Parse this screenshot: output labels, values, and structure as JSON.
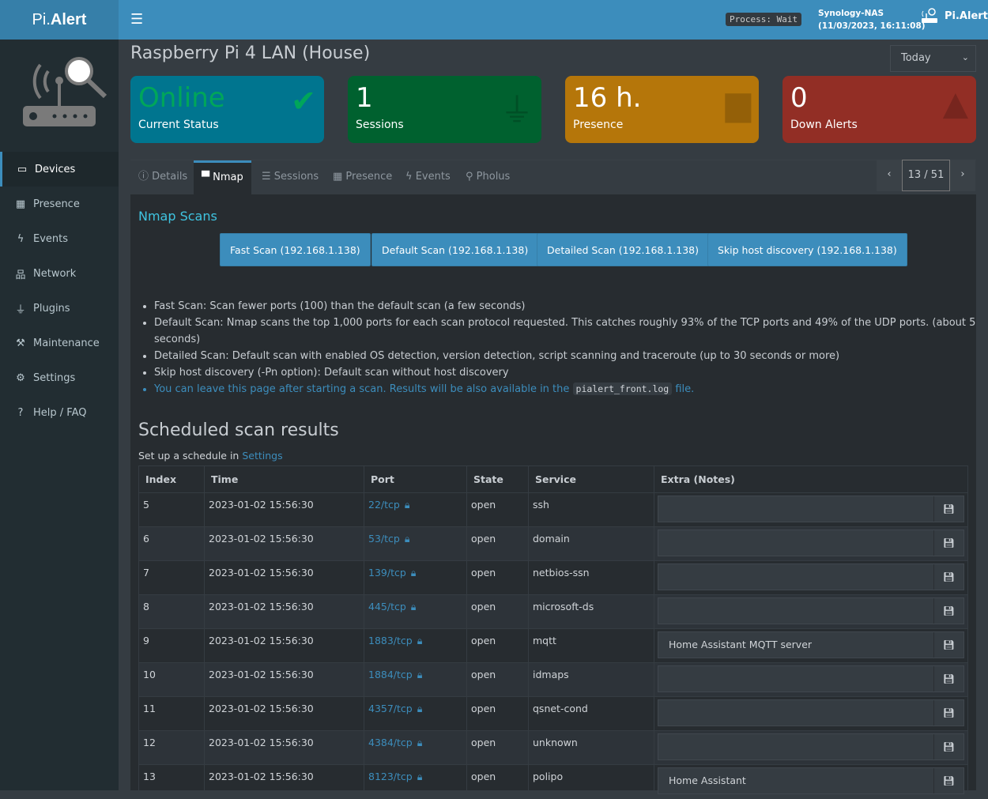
{
  "app": {
    "logo_a": "Pi.",
    "logo_b": "Alert",
    "brand": "Pi.Alert"
  },
  "header": {
    "process": "Process: Wait",
    "server": "Synology-NAS",
    "datetime": "(11/03/2023, 16:11:08)"
  },
  "sidebar": {
    "items": [
      {
        "label": "Devices",
        "icon": "laptop-icon",
        "glyph": "💻"
      },
      {
        "label": "Presence",
        "icon": "calendar-icon",
        "glyph": "▦"
      },
      {
        "label": "Events",
        "icon": "bolt-icon",
        "glyph": "⚡"
      },
      {
        "label": "Network",
        "icon": "sitemap-icon",
        "glyph": "品"
      },
      {
        "label": "Plugins",
        "icon": "plug-icon",
        "glyph": "⏚"
      },
      {
        "label": "Maintenance",
        "icon": "wrench-icon",
        "glyph": "🔧"
      },
      {
        "label": "Settings",
        "icon": "gear-icon",
        "glyph": "⚙"
      },
      {
        "label": "Help / FAQ",
        "icon": "question-icon",
        "glyph": "?"
      }
    ]
  },
  "page": {
    "title": "Raspberry Pi 4 LAN (House)",
    "period": "Today"
  },
  "cards": [
    {
      "value": "Online",
      "label": "Current Status",
      "color": "#00758f"
    },
    {
      "value": "1",
      "label": "Sessions",
      "color": "#00612f"
    },
    {
      "value": "16 h.",
      "label": "Presence",
      "color": "#b5760a"
    },
    {
      "value": "0",
      "label": "Down Alerts",
      "color": "#922e25"
    }
  ],
  "tabs": [
    {
      "label": "Details",
      "icon": "info-icon"
    },
    {
      "label": "Nmap",
      "icon": "ethernet-icon"
    },
    {
      "label": "Sessions",
      "icon": "list-ol-icon"
    },
    {
      "label": "Presence",
      "icon": "calendar-icon"
    },
    {
      "label": "Events",
      "icon": "bolt-icon"
    },
    {
      "label": "Pholus",
      "icon": "search-icon"
    }
  ],
  "pager": {
    "position": "13 / 51"
  },
  "nmap": {
    "title": "Nmap Scans",
    "buttons": [
      "Fast Scan (192.168.1.138)",
      "Default Scan (192.168.1.138)",
      "Detailed Scan (192.168.1.138)",
      "Skip host discovery (192.168.1.138)"
    ],
    "notes": [
      "Fast Scan: Scan fewer ports (100) than the default scan (a few seconds)",
      "Default Scan: Nmap scans the top 1,000 ports for each scan protocol requested. This catches roughly 93% of the TCP ports and 49% of the UDP ports. (about 5 seconds)",
      "Detailed Scan: Default scan with enabled OS detection, version detection, script scanning and traceroute (up to 30 seconds or more)",
      "Skip host discovery (-Pn option): Default scan without host discovery"
    ],
    "note_link_a": "You can leave this page after starting a scan. Results will be also available in the ",
    "note_link_code": "pialert_front.log",
    "note_link_b": " file."
  },
  "scheduled": {
    "title": "Scheduled scan results",
    "setup_text": "Set up a schedule in ",
    "setup_link": "Settings",
    "columns": [
      "Index",
      "Time",
      "Port",
      "State",
      "Service",
      "Extra (Notes)"
    ],
    "rows": [
      [
        "5",
        "2023-01-02 15:56:30",
        "22/tcp",
        "open",
        "ssh",
        ""
      ],
      [
        "6",
        "2023-01-02 15:56:30",
        "53/tcp",
        "open",
        "domain",
        ""
      ],
      [
        "7",
        "2023-01-02 15:56:30",
        "139/tcp",
        "open",
        "netbios-ssn",
        ""
      ],
      [
        "8",
        "2023-01-02 15:56:30",
        "445/tcp",
        "open",
        "microsoft-ds",
        ""
      ],
      [
        "9",
        "2023-01-02 15:56:30",
        "1883/tcp",
        "open",
        "mqtt",
        "Home Assistant MQTT server"
      ],
      [
        "10",
        "2023-01-02 15:56:30",
        "1884/tcp",
        "open",
        "idmaps",
        ""
      ],
      [
        "11",
        "2023-01-02 15:56:30",
        "4357/tcp",
        "open",
        "qsnet-cond",
        ""
      ],
      [
        "12",
        "2023-01-02 15:56:30",
        "4384/tcp",
        "open",
        "unknown",
        ""
      ],
      [
        "13",
        "2023-01-02 15:56:30",
        "8123/tcp",
        "open",
        "polipo",
        "Home Assistant"
      ]
    ]
  }
}
